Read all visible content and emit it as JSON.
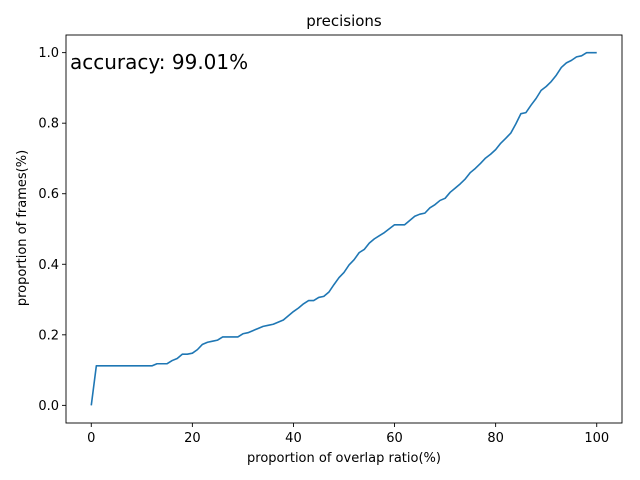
{
  "chart_data": {
    "type": "line",
    "title": "precisions",
    "xlabel": "proportion of overlap ratio(%)",
    "ylabel": "proportion of frames(%)",
    "xlim": [
      -5,
      105
    ],
    "ylim": [
      -0.05,
      1.05
    ],
    "xticks": [
      0,
      20,
      40,
      60,
      80,
      100
    ],
    "yticks": [
      0.0,
      0.2,
      0.4,
      0.6,
      0.8,
      1.0
    ],
    "xtick_labels": [
      "0",
      "20",
      "40",
      "60",
      "80",
      "100"
    ],
    "ytick_labels": [
      "0.0",
      "0.2",
      "0.4",
      "0.6",
      "0.8",
      "1.0"
    ],
    "grid": false,
    "annotation": "accuracy: 99.01%",
    "series": [
      {
        "color": "#1f77b4",
        "x": [
          0,
          1,
          2,
          3,
          4,
          5,
          6,
          7,
          8,
          9,
          10,
          11,
          12,
          13,
          14,
          15,
          16,
          17,
          18,
          19,
          20,
          21,
          22,
          23,
          24,
          25,
          26,
          27,
          28,
          29,
          30,
          31,
          32,
          33,
          34,
          35,
          36,
          37,
          38,
          39,
          40,
          41,
          42,
          43,
          44,
          45,
          46,
          47,
          48,
          49,
          50,
          51,
          52,
          53,
          54,
          55,
          56,
          57,
          58,
          59,
          60,
          61,
          62,
          63,
          64,
          65,
          66,
          67,
          68,
          69,
          70,
          71,
          72,
          73,
          74,
          75,
          76,
          77,
          78,
          79,
          80,
          81,
          82,
          83,
          84,
          85,
          86,
          87,
          88,
          89,
          90,
          91,
          92,
          93,
          94,
          95,
          96,
          97,
          98,
          99,
          100
        ],
        "y": [
          0.0,
          0.112,
          0.112,
          0.112,
          0.112,
          0.112,
          0.112,
          0.112,
          0.112,
          0.112,
          0.112,
          0.112,
          0.112,
          0.118,
          0.118,
          0.118,
          0.127,
          0.133,
          0.145,
          0.145,
          0.148,
          0.158,
          0.173,
          0.179,
          0.182,
          0.185,
          0.194,
          0.194,
          0.194,
          0.194,
          0.203,
          0.206,
          0.212,
          0.218,
          0.224,
          0.227,
          0.23,
          0.236,
          0.242,
          0.254,
          0.266,
          0.276,
          0.288,
          0.297,
          0.297,
          0.306,
          0.309,
          0.321,
          0.342,
          0.362,
          0.377,
          0.398,
          0.413,
          0.433,
          0.442,
          0.46,
          0.472,
          0.481,
          0.49,
          0.501,
          0.512,
          0.512,
          0.512,
          0.524,
          0.536,
          0.542,
          0.545,
          0.56,
          0.569,
          0.581,
          0.587,
          0.604,
          0.616,
          0.628,
          0.642,
          0.66,
          0.672,
          0.686,
          0.701,
          0.712,
          0.725,
          0.743,
          0.757,
          0.772,
          0.798,
          0.827,
          0.83,
          0.851,
          0.87,
          0.893,
          0.904,
          0.918,
          0.936,
          0.958,
          0.971,
          0.978,
          0.988,
          0.991,
          1.0,
          1.0,
          1.0
        ]
      }
    ]
  }
}
